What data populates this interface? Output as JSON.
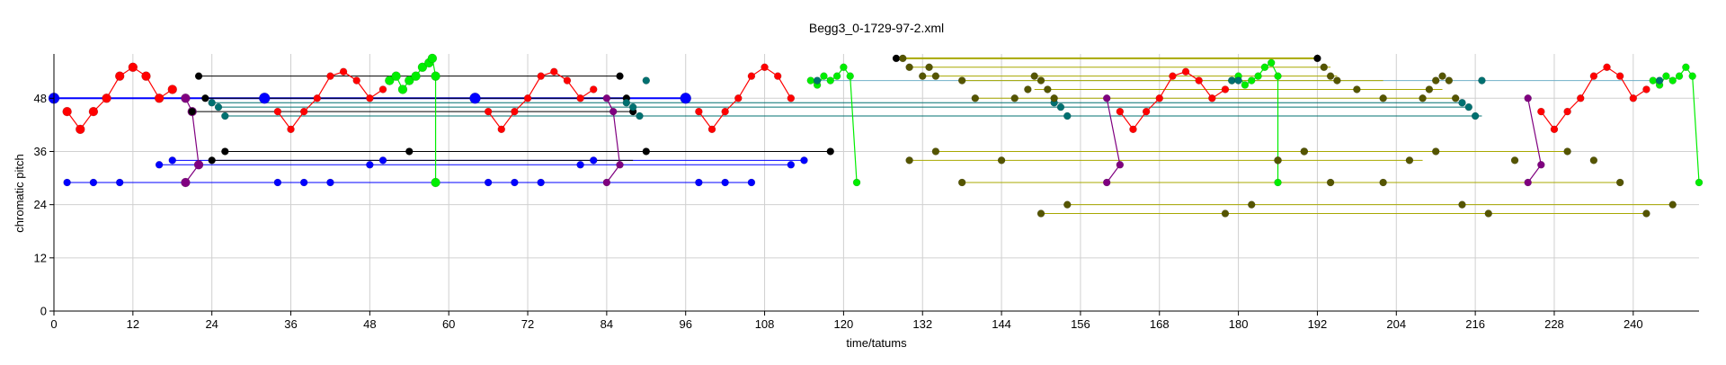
{
  "chart_data": {
    "type": "scatter",
    "title": "Begg3_0-1729-97-2.xml",
    "xlabel": "time/tatums",
    "ylabel": "chromatic pitch",
    "xlim": [
      0,
      250
    ],
    "ylim": [
      0,
      58
    ],
    "xticks": [
      0,
      12,
      24,
      36,
      48,
      60,
      72,
      84,
      96,
      108,
      120,
      132,
      144,
      156,
      168,
      180,
      192,
      204,
      216,
      228,
      240
    ],
    "yticks": [
      0,
      12,
      24,
      36,
      48
    ],
    "grid": true,
    "colors": {
      "red": "#ff0000",
      "blue": "#0000ff",
      "green": "#00ee00",
      "black": "#000000",
      "teal": "#007070",
      "purple": "#800080",
      "olive": "#555500",
      "olive_line": "#a8a800",
      "cyan_line": "#70b0c8",
      "grid": "#d0d0d0"
    },
    "series": [
      {
        "color": "#ff0000",
        "line": "#ff0000",
        "mode": "lines+markers",
        "x": [
          2,
          4,
          6,
          8,
          10,
          12,
          14,
          16,
          18
        ],
        "y": [
          45,
          41,
          45,
          48,
          53,
          55,
          53,
          48,
          50
        ],
        "size": [
          5,
          5,
          5,
          5,
          5,
          5,
          5,
          5,
          5
        ]
      },
      {
        "color": "#ff0000",
        "line": "#ff0000",
        "mode": "lines+markers",
        "x": [
          34,
          36,
          38,
          40,
          42,
          44,
          46,
          48,
          50
        ],
        "y": [
          45,
          41,
          45,
          48,
          53,
          54,
          52,
          48,
          50
        ],
        "size": [
          4,
          4,
          4,
          4,
          4,
          4,
          4,
          4,
          4
        ]
      },
      {
        "color": "#ff0000",
        "line": "#ff0000",
        "mode": "lines+markers",
        "x": [
          66,
          68,
          70,
          72,
          74,
          76,
          78,
          80,
          82
        ],
        "y": [
          45,
          41,
          45,
          48,
          53,
          54,
          52,
          48,
          50
        ],
        "size": [
          4,
          4,
          4,
          4,
          4,
          4,
          4,
          4,
          4
        ]
      },
      {
        "color": "#ff0000",
        "line": "#ff0000",
        "mode": "lines+markers",
        "x": [
          98,
          100,
          102,
          104,
          106,
          108,
          110,
          112
        ],
        "y": [
          45,
          41,
          45,
          48,
          53,
          55,
          53,
          48
        ],
        "size": [
          4,
          4,
          4,
          4,
          4,
          4,
          4,
          4
        ]
      },
      {
        "color": "#ff0000",
        "line": "#ff0000",
        "mode": "lines+markers",
        "x": [
          162,
          164,
          166,
          168,
          170,
          172,
          174,
          176,
          178
        ],
        "y": [
          45,
          41,
          45,
          48,
          53,
          54,
          52,
          48,
          50
        ],
        "size": [
          4,
          4,
          4,
          4,
          4,
          4,
          4,
          4,
          4
        ]
      },
      {
        "color": "#ff0000",
        "line": "#ff0000",
        "mode": "lines+markers",
        "x": [
          226,
          228,
          230,
          232,
          234,
          236,
          238,
          240,
          242
        ],
        "y": [
          45,
          41,
          45,
          48,
          53,
          55,
          53,
          48,
          50
        ],
        "size": [
          4,
          4,
          4,
          4,
          4,
          4,
          4,
          4,
          4
        ]
      },
      {
        "color": "#00ee00",
        "line": "#00ee00",
        "mode": "lines+markers",
        "x": [
          51,
          52,
          53,
          54,
          55,
          56,
          57,
          57.5,
          58,
          58
        ],
        "y": [
          52,
          53,
          50,
          52,
          53,
          55,
          56,
          57,
          53,
          29
        ],
        "size": [
          5,
          5,
          5,
          5,
          5,
          5,
          5,
          5,
          5,
          5
        ]
      },
      {
        "color": "#00ee00",
        "line": "#00ee00",
        "mode": "lines+markers",
        "x": [
          115,
          116,
          117,
          118,
          119,
          120,
          121,
          122
        ],
        "y": [
          52,
          51,
          53,
          52,
          53,
          55,
          53,
          29
        ],
        "size": [
          4,
          4,
          4,
          4,
          4,
          4,
          4,
          4
        ]
      },
      {
        "color": "#00ee00",
        "line": "#00ee00",
        "mode": "lines+markers",
        "x": [
          179,
          180,
          181,
          182,
          183,
          184,
          185,
          186,
          186
        ],
        "y": [
          52,
          53,
          51,
          52,
          53,
          55,
          56,
          53,
          29
        ],
        "size": [
          4,
          4,
          4,
          4,
          4,
          4,
          4,
          4,
          4
        ]
      },
      {
        "color": "#00ee00",
        "line": "#00ee00",
        "mode": "lines+markers",
        "x": [
          243,
          244,
          245,
          246,
          247,
          248,
          249,
          250
        ],
        "y": [
          52,
          51,
          53,
          52,
          53,
          55,
          53,
          29
        ],
        "size": [
          4,
          4,
          4,
          4,
          4,
          4,
          4,
          4
        ]
      },
      {
        "color": "#800080",
        "line": "#800080",
        "mode": "lines+markers",
        "x": [
          20,
          21,
          22,
          20
        ],
        "y": [
          48,
          45,
          33,
          29
        ],
        "size": [
          5,
          5,
          5,
          5
        ]
      },
      {
        "color": "#800080",
        "line": "#800080",
        "mode": "lines+markers",
        "x": [
          84,
          85,
          86,
          84
        ],
        "y": [
          48,
          45,
          33,
          29
        ],
        "size": [
          4,
          4,
          4,
          4
        ]
      },
      {
        "color": "#800080",
        "line": "#800080",
        "mode": "lines+markers",
        "x": [
          160,
          162,
          160
        ],
        "y": [
          48,
          33,
          29
        ],
        "size": [
          4,
          4,
          4
        ]
      },
      {
        "color": "#800080",
        "line": "#800080",
        "mode": "lines+markers",
        "x": [
          224,
          226,
          224
        ],
        "y": [
          48,
          33,
          29
        ],
        "size": [
          4,
          4,
          4
        ]
      },
      {
        "color": "#000000",
        "line": "none",
        "mode": "markers",
        "x": [
          22,
          23,
          21,
          24,
          26,
          54,
          86,
          87,
          88,
          90,
          118,
          128,
          192
        ],
        "y": [
          53,
          48,
          45,
          34,
          36,
          36,
          53,
          48,
          45,
          36,
          36,
          57,
          57
        ],
        "size": [
          4,
          4,
          4,
          4,
          4,
          4,
          4,
          4,
          4,
          4,
          4,
          4,
          4
        ]
      },
      {
        "color": "#0000ff",
        "line": "none",
        "mode": "markers",
        "x": [
          0,
          32,
          64,
          96
        ],
        "y": [
          48,
          48,
          48,
          48
        ],
        "size": [
          6,
          6,
          6,
          6
        ]
      },
      {
        "color": "#0000ff",
        "line": "none",
        "mode": "markers",
        "x": [
          2,
          6,
          10,
          34,
          38,
          42,
          66,
          70,
          74,
          98,
          102,
          106,
          16,
          18,
          48,
          50,
          80,
          82,
          112,
          114
        ],
        "y": [
          29,
          29,
          29,
          29,
          29,
          29,
          29,
          29,
          29,
          29,
          29,
          29,
          33,
          34,
          33,
          34,
          33,
          34,
          33,
          34
        ],
        "size": [
          4,
          4,
          4,
          4,
          4,
          4,
          4,
          4,
          4,
          4,
          4,
          4,
          4,
          4,
          4,
          4,
          4,
          4,
          4,
          4
        ]
      },
      {
        "color": "#007070",
        "line": "none",
        "mode": "markers",
        "x": [
          24,
          25,
          26,
          87,
          88,
          89,
          90,
          116,
          152,
          153,
          154,
          179,
          180,
          214,
          215,
          216,
          217,
          244
        ],
        "y": [
          47,
          46,
          44,
          47,
          46,
          44,
          52,
          52,
          47,
          46,
          44,
          52,
          52,
          47,
          46,
          44,
          52,
          52
        ],
        "size": [
          4,
          4,
          4,
          4,
          4,
          4,
          4,
          4,
          4,
          4,
          4,
          4,
          4,
          4,
          4,
          4,
          4,
          4
        ]
      },
      {
        "color": "#555500",
        "line": "none",
        "mode": "markers",
        "x": [
          129,
          130,
          132,
          133,
          134,
          138,
          140,
          146,
          148,
          149,
          150,
          151,
          152,
          130,
          134,
          138,
          144,
          150,
          154,
          186,
          190,
          193,
          194,
          195,
          198,
          202,
          208,
          209,
          210,
          211,
          212,
          213,
          186,
          190,
          194,
          202,
          206,
          210,
          214,
          218,
          222,
          230,
          234,
          238,
          242,
          246,
          178,
          182
        ],
        "y": [
          57,
          55,
          53,
          55,
          53,
          52,
          48,
          48,
          50,
          53,
          52,
          50,
          48,
          34,
          36,
          29,
          34,
          22,
          24,
          34,
          36,
          55,
          53,
          52,
          50,
          48,
          48,
          50,
          52,
          53,
          52,
          48,
          34,
          36,
          29,
          29,
          34,
          36,
          24,
          22,
          34,
          36,
          34,
          29,
          22,
          24,
          22,
          24
        ],
        "size": [
          4,
          4,
          4,
          4,
          4,
          4,
          4,
          4,
          4,
          4,
          4,
          4,
          4,
          4,
          4,
          4,
          4,
          4,
          4,
          4,
          4,
          4,
          4,
          4,
          4,
          4,
          4,
          4,
          4,
          4,
          4,
          4,
          4,
          4,
          4,
          4,
          4,
          4,
          4,
          4,
          4,
          4,
          4,
          4,
          4,
          4,
          4,
          4
        ]
      }
    ],
    "segments": [
      {
        "color": "#0000ff",
        "x": [
          0,
          96
        ],
        "y": [
          48,
          48
        ],
        "width": 2
      },
      {
        "color": "#0000ff",
        "x": [
          2,
          106
        ],
        "y": [
          29,
          29
        ],
        "width": 1
      },
      {
        "color": "#0000ff",
        "x": [
          16,
          112
        ],
        "y": [
          33,
          33
        ],
        "width": 1
      },
      {
        "color": "#0000ff",
        "x": [
          18,
          114
        ],
        "y": [
          34,
          34
        ],
        "width": 1
      },
      {
        "color": "#000000",
        "x": [
          22,
          86
        ],
        "y": [
          53,
          53
        ],
        "width": 1
      },
      {
        "color": "#000000",
        "x": [
          23,
          87
        ],
        "y": [
          48,
          48
        ],
        "width": 1
      },
      {
        "color": "#000000",
        "x": [
          21,
          88
        ],
        "y": [
          45,
          45
        ],
        "width": 1
      },
      {
        "color": "#000000",
        "x": [
          24,
          88
        ],
        "y": [
          34,
          34
        ],
        "width": 1
      },
      {
        "color": "#000000",
        "x": [
          26,
          118
        ],
        "y": [
          36,
          36
        ],
        "width": 1
      },
      {
        "color": "#007070",
        "x": [
          24,
          214
        ],
        "y": [
          47,
          47
        ],
        "width": 1
      },
      {
        "color": "#007070",
        "x": [
          25,
          215
        ],
        "y": [
          46,
          46
        ],
        "width": 1
      },
      {
        "color": "#007070",
        "x": [
          26,
          217
        ],
        "y": [
          44,
          44
        ],
        "width": 1
      },
      {
        "color": "#70b0c8",
        "x": [
          116,
          244
        ],
        "y": [
          52,
          52
        ],
        "width": 1
      },
      {
        "color": "#a8a800",
        "x": [
          128,
          192
        ],
        "y": [
          57,
          57
        ],
        "width": 2
      },
      {
        "color": "#a8a800",
        "x": [
          130,
          194
        ],
        "y": [
          55,
          55
        ],
        "width": 1
      },
      {
        "color": "#a8a800",
        "x": [
          132,
          195
        ],
        "y": [
          53,
          53
        ],
        "width": 1
      },
      {
        "color": "#a8a800",
        "x": [
          138,
          202
        ],
        "y": [
          52,
          52
        ],
        "width": 1
      },
      {
        "color": "#a8a800",
        "x": [
          149,
          211
        ],
        "y": [
          50,
          50
        ],
        "width": 1
      },
      {
        "color": "#a8a800",
        "x": [
          140,
          213
        ],
        "y": [
          48,
          48
        ],
        "width": 1
      },
      {
        "color": "#a8a800",
        "x": [
          130,
          208
        ],
        "y": [
          34,
          34
        ],
        "width": 1
      },
      {
        "color": "#a8a800",
        "x": [
          134,
          230
        ],
        "y": [
          36,
          36
        ],
        "width": 1
      },
      {
        "color": "#a8a800",
        "x": [
          138,
          238
        ],
        "y": [
          29,
          29
        ],
        "width": 1
      },
      {
        "color": "#a8a800",
        "x": [
          150,
          242
        ],
        "y": [
          22,
          22
        ],
        "width": 1
      },
      {
        "color": "#a8a800",
        "x": [
          154,
          246
        ],
        "y": [
          24,
          24
        ],
        "width": 1
      }
    ]
  }
}
